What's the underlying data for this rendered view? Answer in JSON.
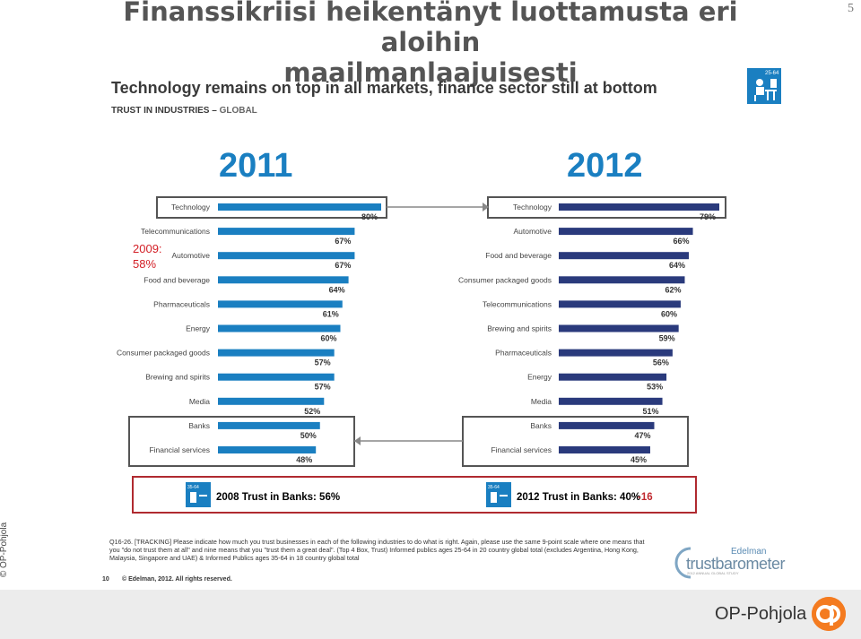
{
  "slide": {
    "title_line1": "Finanssikriisi heikentänyt luottamusta eri aloihin",
    "title_line2": "maailmanlaajuisesti",
    "page_number": "5",
    "headline": "Technology remains on top in all markets, finance sector still at bottom",
    "subhead_main": "TRUST IN INDUSTRIES – ",
    "subhead_scope": "GLOBAL",
    "icon_tag": "25-64",
    "side_label": "© OP-Pohjola"
  },
  "annotation_2009": {
    "line1": "2009:",
    "line2": "58%"
  },
  "banks_summary": {
    "trust_2008": "2008 Trust in Banks: 56%",
    "trust_2012": "2012 Trust in Banks: 40%",
    "change": "-16",
    "badge_2008": "35-64",
    "badge_2012": "35-64"
  },
  "colors": {
    "bar_2011": "#1a7fc1",
    "bar_2012": "#2a3a7c",
    "highlight_box": "#555555",
    "red_box": "#b02a30"
  },
  "chart_data": [
    {
      "type": "bar",
      "orientation": "horizontal",
      "title": "2011",
      "categories": [
        "Technology",
        "Telecommunications",
        "Automotive",
        "Food and beverage",
        "Pharmaceuticals",
        "Energy",
        "Consumer packaged goods",
        "Brewing and spirits",
        "Media",
        "Banks",
        "Financial services"
      ],
      "values": [
        80,
        67,
        67,
        64,
        61,
        60,
        57,
        57,
        52,
        50,
        48
      ],
      "value_labels": [
        "80%",
        "67%",
        "67%",
        "64%",
        "61%",
        "60%",
        "57%",
        "57%",
        "52%",
        "50%",
        "48%"
      ],
      "xlim": [
        0,
        100
      ]
    },
    {
      "type": "bar",
      "orientation": "horizontal",
      "title": "2012",
      "categories": [
        "Technology",
        "Automotive",
        "Food and beverage",
        "Consumer packaged goods",
        "Telecommunications",
        "Brewing and spirits",
        "Pharmaceuticals",
        "Energy",
        "Media",
        "Banks",
        "Financial services"
      ],
      "values": [
        79,
        66,
        64,
        62,
        60,
        59,
        56,
        53,
        51,
        47,
        45
      ],
      "value_labels": [
        "79%",
        "66%",
        "64%",
        "62%",
        "60%",
        "59%",
        "56%",
        "53%",
        "51%",
        "47%",
        "45%"
      ],
      "xlim": [
        0,
        100
      ]
    }
  ],
  "footnote": {
    "text": "Q16-26. [TRACKING] Please indicate how much you trust businesses in each of the following industries to do what is right. Again, please use the same 9-point scale where one means that you \"do not trust them at all\" and nine means that you \"trust them a great deal\". (Top 4 Box, Trust) Informed publics ages 25-64 in 20 country global total (excludes Argentina, Hong Kong, Malaysia, Singapore and UAE) & Informed Publics ages 35-64 in 18 country global total",
    "page": "10",
    "copyright": "© Edelman, 2012. All rights reserved."
  },
  "branding": {
    "edelman": "Edelman",
    "trustbarometer": "trustbarometer",
    "tb_sub": "2012 ANNUAL GLOBAL STUDY",
    "company": "OP-Pohjola"
  }
}
